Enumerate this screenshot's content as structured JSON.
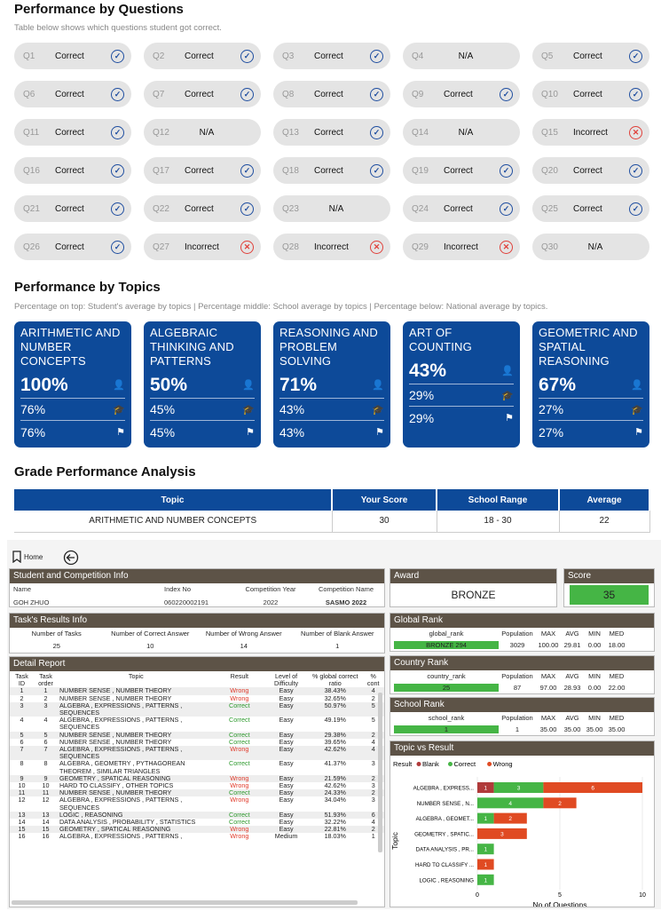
{
  "perf_questions": {
    "title": "Performance by Questions",
    "subtitle": "Table below shows which questions student got correct.",
    "items": [
      {
        "q": "Q1",
        "r": "Correct",
        "s": "ok"
      },
      {
        "q": "Q2",
        "r": "Correct",
        "s": "ok"
      },
      {
        "q": "Q3",
        "r": "Correct",
        "s": "ok"
      },
      {
        "q": "Q4",
        "r": "N/A",
        "s": "na"
      },
      {
        "q": "Q5",
        "r": "Correct",
        "s": "ok"
      },
      {
        "q": "Q6",
        "r": "Correct",
        "s": "ok"
      },
      {
        "q": "Q7",
        "r": "Correct",
        "s": "ok"
      },
      {
        "q": "Q8",
        "r": "Correct",
        "s": "ok"
      },
      {
        "q": "Q9",
        "r": "Correct",
        "s": "ok"
      },
      {
        "q": "Q10",
        "r": "Correct",
        "s": "ok"
      },
      {
        "q": "Q11",
        "r": "Correct",
        "s": "ok"
      },
      {
        "q": "Q12",
        "r": "N/A",
        "s": "na"
      },
      {
        "q": "Q13",
        "r": "Correct",
        "s": "ok"
      },
      {
        "q": "Q14",
        "r": "N/A",
        "s": "na"
      },
      {
        "q": "Q15",
        "r": "Incorrect",
        "s": "bad"
      },
      {
        "q": "Q16",
        "r": "Correct",
        "s": "ok"
      },
      {
        "q": "Q17",
        "r": "Correct",
        "s": "ok"
      },
      {
        "q": "Q18",
        "r": "Correct",
        "s": "ok"
      },
      {
        "q": "Q19",
        "r": "Correct",
        "s": "ok"
      },
      {
        "q": "Q20",
        "r": "Correct",
        "s": "ok"
      },
      {
        "q": "Q21",
        "r": "Correct",
        "s": "ok"
      },
      {
        "q": "Q22",
        "r": "Correct",
        "s": "ok"
      },
      {
        "q": "Q23",
        "r": "N/A",
        "s": "na"
      },
      {
        "q": "Q24",
        "r": "Correct",
        "s": "ok"
      },
      {
        "q": "Q25",
        "r": "Correct",
        "s": "ok"
      },
      {
        "q": "Q26",
        "r": "Correct",
        "s": "ok"
      },
      {
        "q": "Q27",
        "r": "Incorrect",
        "s": "bad"
      },
      {
        "q": "Q28",
        "r": "Incorrect",
        "s": "bad"
      },
      {
        "q": "Q29",
        "r": "Incorrect",
        "s": "bad"
      },
      {
        "q": "Q30",
        "r": "N/A",
        "s": "na"
      }
    ]
  },
  "perf_topics": {
    "title": "Performance by Topics",
    "subtitle": "Percentage on top: Student's average by topics | Percentage middle: School average by topics | Percentage below: National average by topics.",
    "cards": [
      {
        "name": "ARITHMETIC AND NUMBER CONCEPTS",
        "student": "100%",
        "school": "76%",
        "national": "76%"
      },
      {
        "name": "ALGEBRAIC THINKING AND PATTERNS",
        "student": "50%",
        "school": "45%",
        "national": "45%"
      },
      {
        "name": "REASONING AND PROBLEM SOLVING",
        "student": "71%",
        "school": "43%",
        "national": "43%"
      },
      {
        "name": "ART OF COUNTING",
        "student": "43%",
        "school": "29%",
        "national": "29%"
      },
      {
        "name": "GEOMETRIC AND SPATIAL REASONING",
        "student": "67%",
        "school": "27%",
        "national": "27%"
      }
    ]
  },
  "grade": {
    "title": "Grade Performance Analysis",
    "headers": [
      "Topic",
      "Your Score",
      "School Range",
      "Average"
    ],
    "row": [
      "ARITHMETIC AND NUMBER CONCEPTS",
      "30",
      "18 - 30",
      "22"
    ]
  },
  "pbi": {
    "home": "Home",
    "student_info": {
      "title": "Student and Competition Info",
      "headers": [
        "Name",
        "Index No",
        "Competition Year",
        "Competition Name"
      ],
      "values": [
        "GOH ZHUO",
        "060220002191",
        "2022",
        "SASMO 2022"
      ]
    },
    "award": {
      "title": "Award",
      "value": "BRONZE"
    },
    "score": {
      "title": "Score",
      "value": "35"
    },
    "task_results": {
      "title": "Task's Results Info",
      "headers": [
        "Number of Tasks",
        "Number of Correct Answer",
        "Number of Wrong Answer",
        "Number of Blank Answer"
      ],
      "values": [
        "25",
        "10",
        "14",
        "1"
      ]
    },
    "global_rank": {
      "title": "Global Rank",
      "headers": [
        "global_rank",
        "Population",
        "MAX",
        "AVG",
        "MIN",
        "MED"
      ],
      "values": [
        "BRONZE 294",
        "3029",
        "100.00",
        "29.81",
        "0.00",
        "18.00"
      ]
    },
    "country_rank": {
      "title": "Country Rank",
      "headers": [
        "country_rank",
        "Population",
        "MAX",
        "AVG",
        "MIN",
        "MED"
      ],
      "values": [
        "25",
        "87",
        "97.00",
        "28.93",
        "0.00",
        "22.00"
      ]
    },
    "school_rank": {
      "title": "School Rank",
      "headers": [
        "school_rank",
        "Population",
        "MAX",
        "AVG",
        "MIN",
        "MED"
      ],
      "values": [
        "1",
        "1",
        "35.00",
        "35.00",
        "35.00",
        "35.00"
      ]
    },
    "detail": {
      "title": "Detail Report",
      "headers": [
        "Task ID",
        "Task order",
        "Topic",
        "Result",
        "Level of Difficulty",
        "% global correct ratio",
        "% cont"
      ],
      "rows": [
        [
          "1",
          "1",
          "NUMBER SENSE , NUMBER THEORY",
          "Wrong",
          "Easy",
          "38.43%",
          "4"
        ],
        [
          "2",
          "2",
          "NUMBER SENSE , NUMBER THEORY",
          "Wrong",
          "Easy",
          "32.65%",
          "2"
        ],
        [
          "3",
          "3",
          "ALGEBRA , EXPRESSIONS , PATTERNS , SEQUENCES",
          "Correct",
          "Easy",
          "50.97%",
          "5"
        ],
        [
          "4",
          "4",
          "ALGEBRA , EXPRESSIONS , PATTERNS , SEQUENCES",
          "Correct",
          "Easy",
          "49.19%",
          "5"
        ],
        [
          "5",
          "5",
          "NUMBER SENSE , NUMBER THEORY",
          "Correct",
          "Easy",
          "29.38%",
          "2"
        ],
        [
          "6",
          "6",
          "NUMBER SENSE , NUMBER THEORY",
          "Correct",
          "Easy",
          "39.65%",
          "4"
        ],
        [
          "7",
          "7",
          "ALGEBRA , EXPRESSIONS , PATTERNS , SEQUENCES",
          "Wrong",
          "Easy",
          "42.62%",
          "4"
        ],
        [
          "8",
          "8",
          "ALGEBRA , GEOMETRY , PYTHAGOREAN THEOREM , SIMILAR TRIANGLES",
          "Correct",
          "Easy",
          "41.37%",
          "3"
        ],
        [
          "9",
          "9",
          "GEOMETRY , SPATICAL REASONING",
          "Wrong",
          "Easy",
          "21.59%",
          "2"
        ],
        [
          "10",
          "10",
          "HARD TO CLASSIFY , OTHER TOPICS",
          "Wrong",
          "Easy",
          "42.62%",
          "3"
        ],
        [
          "11",
          "11",
          "NUMBER SENSE , NUMBER THEORY",
          "Correct",
          "Easy",
          "24.33%",
          "2"
        ],
        [
          "12",
          "12",
          "ALGEBRA , EXPRESSIONS , PATTERNS , SEQUENCES",
          "Wrong",
          "Easy",
          "34.04%",
          "3"
        ],
        [
          "13",
          "13",
          "LOGIC , REASONING",
          "Correct",
          "Easy",
          "51.93%",
          "6"
        ],
        [
          "14",
          "14",
          "DATA ANALYSIS , PROBABILITY , STATISTICS",
          "Correct",
          "Easy",
          "32.22%",
          "4"
        ],
        [
          "15",
          "15",
          "GEOMETRY , SPATICAL REASONING",
          "Wrong",
          "Easy",
          "22.81%",
          "2"
        ],
        [
          "16",
          "16",
          "ALGEBRA , EXPRESSIONS , PATTERNS ,",
          "Wrong",
          "Medium",
          "18.03%",
          "1"
        ]
      ]
    },
    "topic_chart": {
      "title": "Topic vs Result",
      "legend_title": "Result",
      "ylabel": "Topic",
      "xlabel": "No of Questions"
    }
  },
  "chart_data": {
    "type": "bar",
    "orientation": "horizontal",
    "stacked": true,
    "title": "Topic vs Result",
    "xlabel": "No of Questions",
    "ylabel": "Topic",
    "xlim": [
      0,
      10
    ],
    "xticks": [
      "0",
      "5",
      "10"
    ],
    "categories": [
      "ALGEBRA , EXPRESS...",
      "NUMBER SENSE , N...",
      "ALGEBRA , GEOMET...",
      "GEOMETRY , SPATIC...",
      "DATA ANALYSIS , PR...",
      "HARD TO CLASSIFY ...",
      "LOGIC , REASONING"
    ],
    "series": [
      {
        "name": "Blank",
        "color": "#b03a3a",
        "values": [
          1,
          0,
          0,
          0,
          0,
          0,
          0
        ]
      },
      {
        "name": "Correct",
        "color": "#45b545",
        "values": [
          3,
          4,
          1,
          0,
          1,
          0,
          1
        ]
      },
      {
        "name": "Wrong",
        "color": "#e04a22",
        "values": [
          6,
          2,
          2,
          3,
          0,
          1,
          0
        ]
      }
    ]
  }
}
